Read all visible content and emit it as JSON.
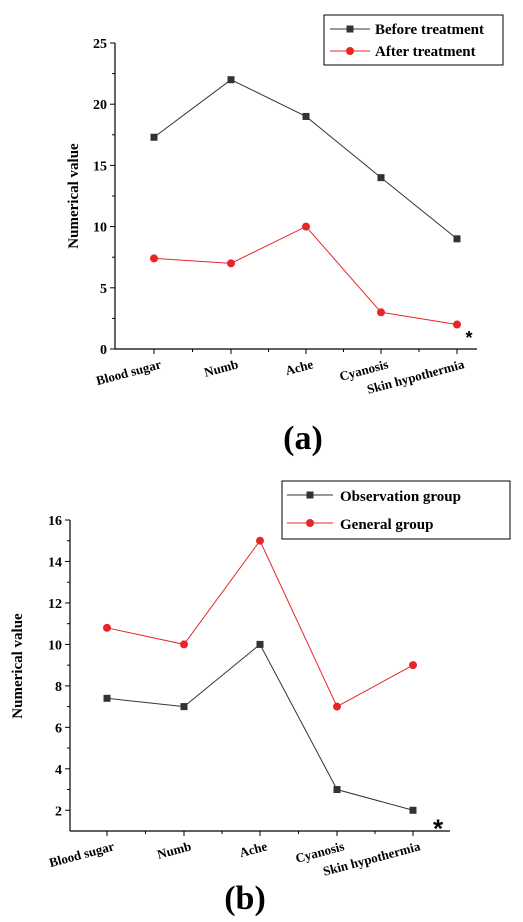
{
  "chart_data": [
    {
      "type": "line",
      "panel_label": "(a)",
      "categories": [
        "Blood sugar",
        "Numb",
        "Ache",
        "Cyanosis",
        "Skin hypothermia"
      ],
      "series": [
        {
          "name": "Before treatment",
          "values": [
            17.3,
            22,
            19,
            14,
            9
          ],
          "color": "#333333",
          "marker": "square"
        },
        {
          "name": "After treatment",
          "values": [
            7.4,
            7,
            10,
            3,
            2
          ],
          "color": "#e8262a",
          "marker": "circle"
        }
      ],
      "ylabel": "Numerical value",
      "ylim": [
        0,
        25
      ],
      "yticks": [
        0,
        5,
        10,
        15,
        20,
        25
      ],
      "annotation": "*",
      "legend": "top-right",
      "grid": false
    },
    {
      "type": "line",
      "panel_label": "(b)",
      "categories": [
        "Blood sugar",
        "Numb",
        "Ache",
        "Cyanosis",
        "Skin hypothermia"
      ],
      "series": [
        {
          "name": "Observation group",
          "values": [
            7.4,
            7,
            10,
            3,
            2
          ],
          "color": "#333333",
          "marker": "square"
        },
        {
          "name": "General group",
          "values": [
            10.8,
            10,
            15,
            7,
            9
          ],
          "color": "#e8262a",
          "marker": "circle"
        }
      ],
      "ylabel": "Numerical value",
      "ylim": [
        1,
        16
      ],
      "yticks": [
        2,
        4,
        6,
        8,
        10,
        12,
        14,
        16
      ],
      "annotation": "*",
      "legend": "top-right",
      "grid": false
    }
  ]
}
